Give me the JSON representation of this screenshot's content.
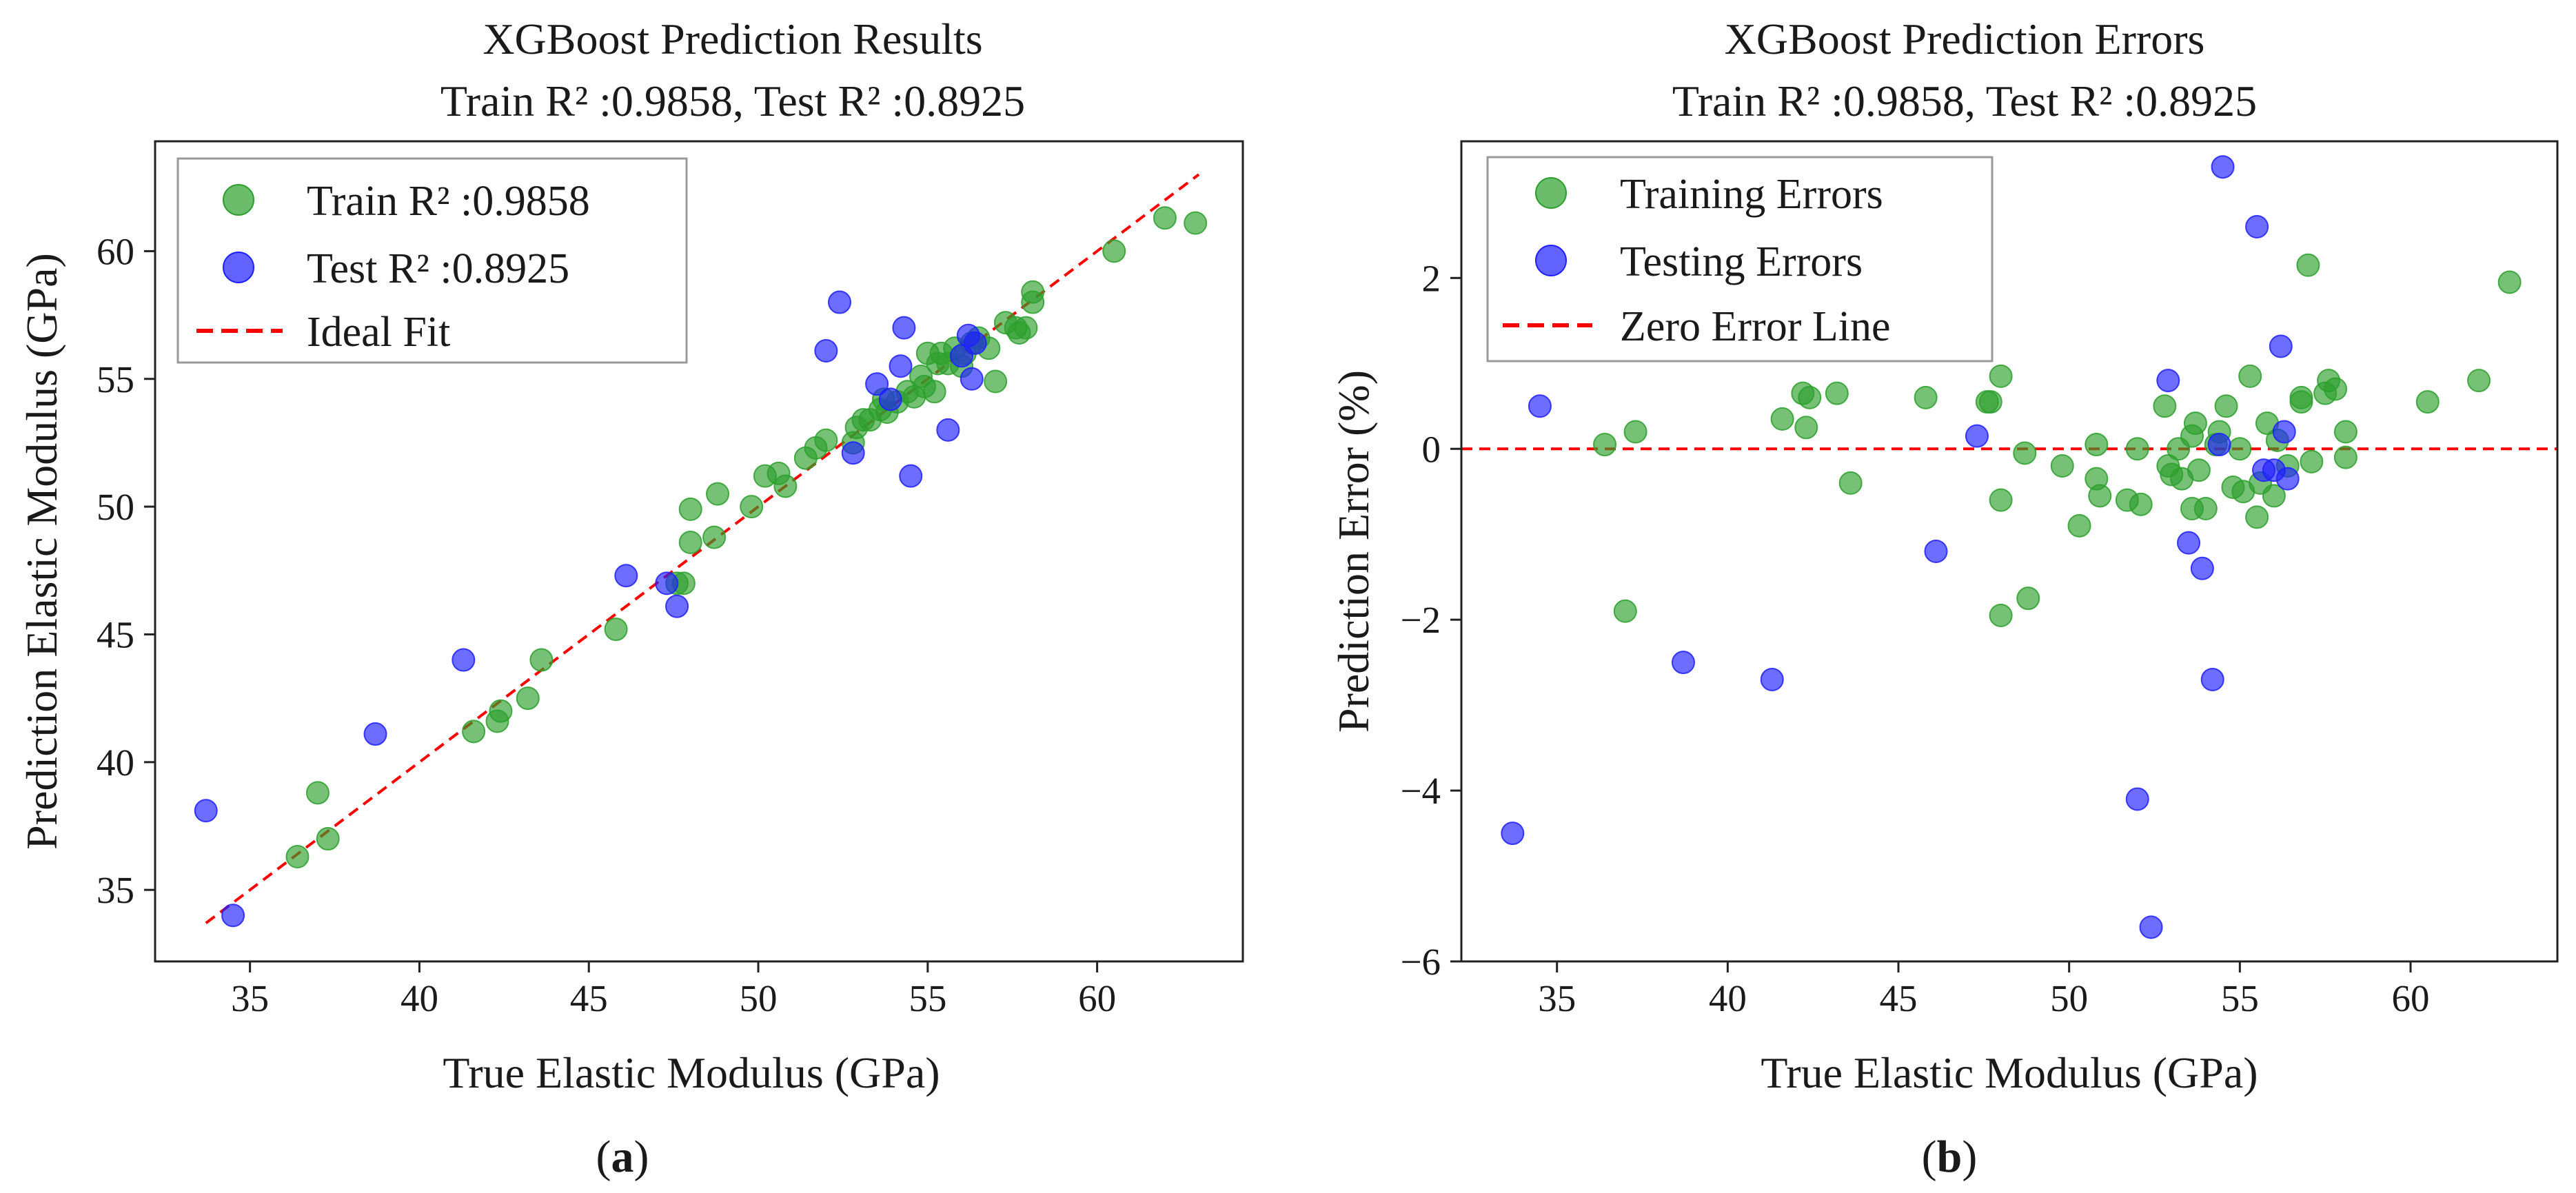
{
  "chart_data": [
    {
      "type": "scatter",
      "title": "XGBoost Prediction Results",
      "subtitle": "Train R² :0.9858, Test R² :0.8925",
      "xlabel": "True Elastic Modulus (GPa)",
      "ylabel": "Prediction Elastic Modulus (GPa)",
      "xlim": [
        32.2,
        64.3
      ],
      "ylim": [
        32.2,
        64.3
      ],
      "xticks": [
        35,
        40,
        45,
        50,
        55,
        60
      ],
      "yticks": [
        35,
        40,
        45,
        50,
        55,
        60
      ],
      "caption_open": "(",
      "caption_letter": "a",
      "caption_close": ")",
      "legend": {
        "position": "top-left",
        "entries": [
          {
            "label": "Train R² :0.9858",
            "kind": "marker",
            "color": "#2ca02c"
          },
          {
            "label": "Test R² :0.8925",
            "kind": "marker",
            "color": "#1f1fff"
          },
          {
            "label": "Ideal Fit",
            "kind": "dashed",
            "color": "#ff0000"
          }
        ]
      },
      "ideal_line": {
        "from": [
          33.7,
          33.7
        ],
        "to": [
          63.0,
          63.0
        ],
        "color": "#ff0000"
      },
      "series": [
        {
          "name": "Train R² :0.9858",
          "color": "#2ca02c",
          "points": [
            [
              36.4,
              36.3
            ],
            [
              37.0,
              38.8
            ],
            [
              37.3,
              37.0
            ],
            [
              41.6,
              41.2
            ],
            [
              42.3,
              41.6
            ],
            [
              42.4,
              42.0
            ],
            [
              43.2,
              42.5
            ],
            [
              43.6,
              44.0
            ],
            [
              45.8,
              45.2
            ],
            [
              47.6,
              47.0
            ],
            [
              47.8,
              47.0
            ],
            [
              48.0,
              48.6
            ],
            [
              48.0,
              49.9
            ],
            [
              48.7,
              48.8
            ],
            [
              48.8,
              50.5
            ],
            [
              49.8,
              50.0
            ],
            [
              50.2,
              51.2
            ],
            [
              50.6,
              51.3
            ],
            [
              50.8,
              50.8
            ],
            [
              51.4,
              51.9
            ],
            [
              51.7,
              52.3
            ],
            [
              52.0,
              52.6
            ],
            [
              52.8,
              52.5
            ],
            [
              52.9,
              53.1
            ],
            [
              53.1,
              53.4
            ],
            [
              53.3,
              53.4
            ],
            [
              53.6,
              53.8
            ],
            [
              53.8,
              53.7
            ],
            [
              53.7,
              54.2
            ],
            [
              54.1,
              54.1
            ],
            [
              54.4,
              54.5
            ],
            [
              54.6,
              54.3
            ],
            [
              54.8,
              55.1
            ],
            [
              54.9,
              54.7
            ],
            [
              55.2,
              54.5
            ],
            [
              55.3,
              55.6
            ],
            [
              55.4,
              56.0
            ],
            [
              55.6,
              55.6
            ],
            [
              55.8,
              56.2
            ],
            [
              56.0,
              55.5
            ],
            [
              56.1,
              56.0
            ],
            [
              56.3,
              56.4
            ],
            [
              56.5,
              56.6
            ],
            [
              56.8,
              56.2
            ],
            [
              57.0,
              54.9
            ],
            [
              57.3,
              57.2
            ],
            [
              57.6,
              57.0
            ],
            [
              57.7,
              56.8
            ],
            [
              57.9,
              57.0
            ],
            [
              58.1,
              58.0
            ],
            [
              58.1,
              58.4
            ],
            [
              60.5,
              60.0
            ],
            [
              62.0,
              61.3
            ],
            [
              62.9,
              61.1
            ],
            [
              55.0,
              56.0
            ]
          ]
        },
        {
          "name": "Test R² :0.8925",
          "color": "#1f1fff",
          "points": [
            [
              33.7,
              38.1
            ],
            [
              34.5,
              34.0
            ],
            [
              38.7,
              41.1
            ],
            [
              41.3,
              44.0
            ],
            [
              46.1,
              47.3
            ],
            [
              47.3,
              47.0
            ],
            [
              47.6,
              46.1
            ],
            [
              52.0,
              56.1
            ],
            [
              52.4,
              58.0
            ],
            [
              52.8,
              52.1
            ],
            [
              53.5,
              54.8
            ],
            [
              53.9,
              54.2
            ],
            [
              54.2,
              55.5
            ],
            [
              54.3,
              57.0
            ],
            [
              54.5,
              51.2
            ],
            [
              55.6,
              53.0
            ],
            [
              56.0,
              55.9
            ],
            [
              56.2,
              56.7
            ],
            [
              56.4,
              56.4
            ],
            [
              56.3,
              55.0
            ]
          ]
        }
      ]
    },
    {
      "type": "scatter",
      "title": "XGBoost Prediction Errors",
      "subtitle": "Train R² :0.9858, Test R² :0.8925",
      "xlabel": "True Elastic Modulus (GPa)",
      "ylabel": "Prediction Error (%)",
      "xlim": [
        32.2,
        64.3
      ],
      "ylim": [
        -6.0,
        3.6
      ],
      "xticks": [
        35,
        40,
        45,
        50,
        55,
        60
      ],
      "yticks": [
        -6,
        -4,
        -2,
        0,
        2
      ],
      "ytick_labels": [
        "−6",
        "−4",
        "−2",
        "0",
        "2"
      ],
      "caption_open": "(",
      "caption_letter": "b",
      "caption_close": ")",
      "legend": {
        "position": "top-left",
        "entries": [
          {
            "label": "Training Errors",
            "kind": "marker",
            "color": "#2ca02c"
          },
          {
            "label": "Testing Errors",
            "kind": "marker",
            "color": "#1f1fff"
          },
          {
            "label": "Zero Error Line",
            "kind": "dashed",
            "color": "#ff0000"
          }
        ]
      },
      "zero_line": {
        "y": 0,
        "color": "#ff0000"
      },
      "series": [
        {
          "name": "Training Errors",
          "color": "#2ca02c",
          "points": [
            [
              36.4,
              0.05
            ],
            [
              37.0,
              -1.9
            ],
            [
              37.3,
              0.2
            ],
            [
              41.6,
              0.35
            ],
            [
              42.2,
              0.65
            ],
            [
              42.3,
              0.25
            ],
            [
              42.4,
              0.6
            ],
            [
              43.2,
              0.65
            ],
            [
              43.6,
              -0.4
            ],
            [
              45.8,
              0.6
            ],
            [
              47.6,
              0.55
            ],
            [
              47.7,
              0.55
            ],
            [
              48.0,
              0.85
            ],
            [
              48.0,
              -0.6
            ],
            [
              48.0,
              -1.95
            ],
            [
              48.7,
              -0.05
            ],
            [
              48.8,
              -1.75
            ],
            [
              49.8,
              -0.2
            ],
            [
              50.3,
              -0.9
            ],
            [
              50.8,
              -0.35
            ],
            [
              50.8,
              0.05
            ],
            [
              50.9,
              -0.55
            ],
            [
              51.7,
              -0.6
            ],
            [
              52.0,
              0.0
            ],
            [
              52.1,
              -0.65
            ],
            [
              52.8,
              0.5
            ],
            [
              52.9,
              -0.2
            ],
            [
              53.0,
              -0.3
            ],
            [
              53.2,
              0.0
            ],
            [
              53.3,
              -0.35
            ],
            [
              53.6,
              -0.7
            ],
            [
              53.7,
              0.3
            ],
            [
              53.6,
              0.15
            ],
            [
              53.8,
              -0.25
            ],
            [
              54.0,
              -0.7
            ],
            [
              54.3,
              0.05
            ],
            [
              54.4,
              0.2
            ],
            [
              54.6,
              0.5
            ],
            [
              54.8,
              -0.45
            ],
            [
              55.0,
              0.0
            ],
            [
              55.1,
              -0.5
            ],
            [
              55.3,
              0.85
            ],
            [
              55.5,
              -0.8
            ],
            [
              55.6,
              -0.4
            ],
            [
              55.8,
              0.3
            ],
            [
              56.0,
              -0.55
            ],
            [
              56.1,
              0.1
            ],
            [
              56.4,
              -0.2
            ],
            [
              56.8,
              0.6
            ],
            [
              56.8,
              0.55
            ],
            [
              57.0,
              2.15
            ],
            [
              57.1,
              -0.15
            ],
            [
              57.5,
              0.65
            ],
            [
              57.6,
              0.8
            ],
            [
              57.8,
              0.7
            ],
            [
              58.1,
              -0.1
            ],
            [
              58.1,
              0.2
            ],
            [
              60.5,
              0.55
            ],
            [
              62.0,
              0.8
            ],
            [
              62.9,
              1.95
            ]
          ]
        },
        {
          "name": "Testing Errors",
          "color": "#1f1fff",
          "points": [
            [
              33.7,
              -4.5
            ],
            [
              34.5,
              0.5
            ],
            [
              38.7,
              -2.5
            ],
            [
              41.3,
              -2.7
            ],
            [
              46.1,
              -1.2
            ],
            [
              47.3,
              0.15
            ],
            [
              52.0,
              -4.1
            ],
            [
              52.4,
              -5.6
            ],
            [
              52.9,
              0.8
            ],
            [
              53.5,
              -1.1
            ],
            [
              53.9,
              -1.4
            ],
            [
              54.2,
              -2.7
            ],
            [
              54.4,
              0.05
            ],
            [
              54.5,
              3.3
            ],
            [
              55.5,
              2.6
            ],
            [
              55.7,
              -0.25
            ],
            [
              56.0,
              -0.25
            ],
            [
              56.2,
              1.2
            ],
            [
              56.3,
              0.2
            ],
            [
              56.4,
              -0.35
            ]
          ]
        }
      ]
    }
  ]
}
